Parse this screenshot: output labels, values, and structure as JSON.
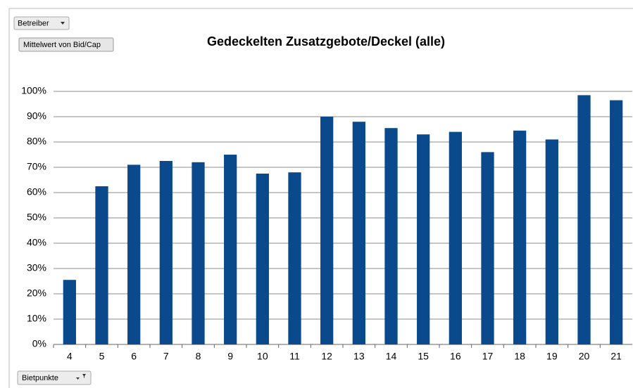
{
  "field_buttons": {
    "filter": "Betreiber",
    "value": "Mittelwert von Bid/Cap",
    "axis": "Bietpunkte"
  },
  "chart_data": {
    "type": "bar",
    "title": "Gedeckelten Zusatzgebote/Deckel (alle)",
    "categories": [
      "4",
      "5",
      "6",
      "7",
      "8",
      "9",
      "10",
      "11",
      "12",
      "13",
      "14",
      "15",
      "16",
      "17",
      "18",
      "19",
      "20",
      "21"
    ],
    "values": [
      25.5,
      62.5,
      71,
      72.5,
      72,
      75,
      67.5,
      68,
      90,
      88,
      85.5,
      83,
      84,
      76,
      84.5,
      81,
      98.5,
      96.5
    ],
    "color": "#0a4a8c",
    "ylim": [
      0,
      100
    ],
    "yticks": [
      {
        "value": 0,
        "label": "0%"
      },
      {
        "value": 10,
        "label": "10%"
      },
      {
        "value": 20,
        "label": "20%"
      },
      {
        "value": 30,
        "label": "30%"
      },
      {
        "value": 40,
        "label": "40%"
      },
      {
        "value": 50,
        "label": "50%"
      },
      {
        "value": 60,
        "label": "60%"
      },
      {
        "value": 70,
        "label": "70%"
      },
      {
        "value": 80,
        "label": "80%"
      },
      {
        "value": 90,
        "label": "90%"
      },
      {
        "value": 100,
        "label": "100%"
      }
    ],
    "grid": true
  }
}
